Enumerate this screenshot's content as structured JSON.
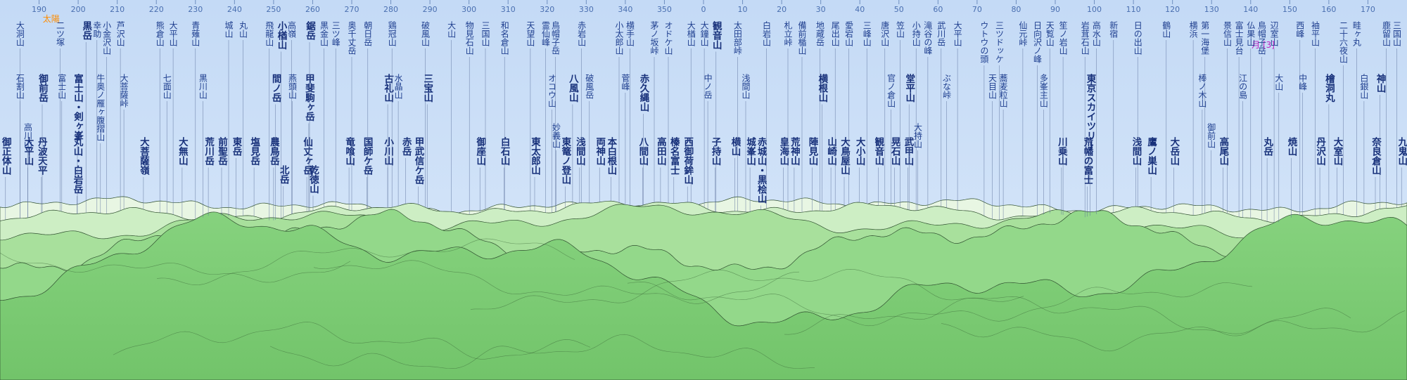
{
  "compass": {
    "xlim": [
      180,
      540
    ],
    "ticks": [
      190,
      200,
      210,
      220,
      230,
      240,
      250,
      260,
      270,
      280,
      290,
      300,
      310,
      320,
      330,
      340,
      350,
      {
        "value": 360,
        "label": "0"
      },
      {
        "value": 370,
        "label": "10"
      },
      {
        "value": 380,
        "label": "20"
      },
      {
        "value": 390,
        "label": "30"
      },
      {
        "value": 400,
        "label": "40"
      },
      {
        "value": 410,
        "label": "50"
      },
      {
        "value": 420,
        "label": "60"
      },
      {
        "value": 430,
        "label": "70"
      },
      {
        "value": 440,
        "label": "80"
      },
      {
        "value": 450,
        "label": "90"
      },
      {
        "value": 460,
        "label": "100"
      },
      {
        "value": 470,
        "label": "110"
      },
      {
        "value": 480,
        "label": "120"
      },
      {
        "value": 490,
        "label": "130"
      },
      {
        "value": 500,
        "label": "140"
      },
      {
        "value": 510,
        "label": "150"
      },
      {
        "value": 520,
        "label": "160"
      },
      {
        "value": 530,
        "label": "170"
      }
    ]
  },
  "annotations": [
    {
      "text": "太陽",
      "azimuth": 193.1,
      "color": "#ff8c00"
    },
    {
      "text": "月 [3]",
      "azimuth": 503.2,
      "color": "#c020c0"
    }
  ],
  "peaks": [
    {
      "name": "御正体山",
      "azimuth": 181.4,
      "major": true
    },
    {
      "name": "大洞山",
      "azimuth": 185.1
    },
    {
      "name": "石割山",
      "azimuth": 185.1
    },
    {
      "name": "大平山",
      "azimuth": 187.1,
      "major": true
    },
    {
      "name": "高川山",
      "azimuth": 187.1
    },
    {
      "name": "丹波天平",
      "azimuth": 190.6,
      "major": true
    },
    {
      "name": "御前岳",
      "azimuth": 190.8,
      "major": true
    },
    {
      "name": "二ツ塚",
      "azimuth": 195.4
    },
    {
      "name": "富士山",
      "azimuth": 195.8
    },
    {
      "name": "丸山・白岩岳",
      "azimuth": 199.7,
      "major": true
    },
    {
      "name": "富士山・剣ヶ峯",
      "azimuth": 199.8,
      "major": true
    },
    {
      "name": "黒岳",
      "azimuth": 202.0,
      "major": true
    },
    {
      "name": "幸助",
      "azimuth": 204.8
    },
    {
      "name": "牛奥ノ雁ヶ腹摺山",
      "azimuth": 205.7
    },
    {
      "name": "小金沢山",
      "azimuth": 207.3
    },
    {
      "name": "芦沢山",
      "azimuth": 210.8
    },
    {
      "name": "大菩薩峠",
      "azimuth": 211.7
    },
    {
      "name": "大菩薩嶺",
      "azimuth": 216.7,
      "major": true
    },
    {
      "name": "熊倉山",
      "azimuth": 220.9
    },
    {
      "name": "七面山",
      "azimuth": 222.7
    },
    {
      "name": "大平山",
      "azimuth": 224.3
    },
    {
      "name": "大無山",
      "azimuth": 226.6,
      "major": true
    },
    {
      "name": "青薙山",
      "azimuth": 230.0
    },
    {
      "name": "黒川山",
      "azimuth": 231.9
    },
    {
      "name": "荒川岳",
      "azimuth": 233.3,
      "major": true
    },
    {
      "name": "前聖岳",
      "azimuth": 236.7,
      "major": true
    },
    {
      "name": "城山",
      "azimuth": 238.5
    },
    {
      "name": "東岳",
      "azimuth": 240.4,
      "major": true
    },
    {
      "name": "丸山",
      "azimuth": 242.2
    },
    {
      "name": "塩見岳",
      "azimuth": 245.0,
      "major": true
    },
    {
      "name": "飛龍山",
      "azimuth": 248.9
    },
    {
      "name": "農鳥岳",
      "azimuth": 250.0,
      "major": true
    },
    {
      "name": "間ノ岳",
      "azimuth": 250.5,
      "major": true
    },
    {
      "name": "小楢山",
      "azimuth": 251.9,
      "major": true
    },
    {
      "name": "北岳",
      "azimuth": 252.5,
      "major": true
    },
    {
      "name": "高嶺",
      "azimuth": 254.6
    },
    {
      "name": "燕頭山",
      "azimuth": 254.8
    },
    {
      "name": "仙丈ヶ岳",
      "azimuth": 258.5,
      "major": true
    },
    {
      "name": "甲斐駒ヶ岳",
      "azimuth": 259.0,
      "major": true
    },
    {
      "name": "鋸岳",
      "azimuth": 259.2,
      "major": true
    },
    {
      "name": "乾徳山",
      "azimuth": 260.1,
      "major": true
    },
    {
      "name": "黒金山",
      "azimuth": 262.9
    },
    {
      "name": "三ツ峰",
      "azimuth": 265.9
    },
    {
      "name": "竜喰山",
      "azimuth": 269.3,
      "major": true
    },
    {
      "name": "奥千丈岳",
      "azimuth": 270.0
    },
    {
      "name": "国師ケ岳",
      "azimuth": 273.9,
      "major": true
    },
    {
      "name": "朝日岳",
      "azimuth": 274.1
    },
    {
      "name": "小川山",
      "azimuth": 279.2,
      "major": true
    },
    {
      "name": "古礼山",
      "azimuth": 279.2,
      "major": true
    },
    {
      "name": "鶏冠山",
      "azimuth": 280.3
    },
    {
      "name": "水晶山",
      "azimuth": 281.9
    },
    {
      "name": "赤岳",
      "azimuth": 283.8,
      "major": true
    },
    {
      "name": "甲武信ケ岳",
      "azimuth": 287.0,
      "major": true
    },
    {
      "name": "破風山",
      "azimuth": 288.8
    },
    {
      "name": "三宝山",
      "azimuth": 289.3,
      "major": true
    },
    {
      "name": "大山",
      "azimuth": 295.5
    },
    {
      "name": "物見石山",
      "azimuth": 300.1
    },
    {
      "name": "御座山",
      "azimuth": 302.8,
      "major": true
    },
    {
      "name": "三国山",
      "azimuth": 304.2
    },
    {
      "name": "白石山",
      "azimuth": 309.0,
      "major": true
    },
    {
      "name": "和名倉山",
      "azimuth": 309.1
    },
    {
      "name": "天望山",
      "azimuth": 315.7
    },
    {
      "name": "東太郎山",
      "azimuth": 316.8,
      "major": true
    },
    {
      "name": "霊仙峰",
      "azimuth": 319.6
    },
    {
      "name": "オコウ山",
      "azimuth": 321.2
    },
    {
      "name": "鳥帽子岳",
      "azimuth": 322.1
    },
    {
      "name": "妙義山",
      "azimuth": 322.3
    },
    {
      "name": "東篭ノ登山",
      "azimuth": 324.6,
      "major": true
    },
    {
      "name": "八風山",
      "azimuth": 326.5,
      "major": true
    },
    {
      "name": "浅間山",
      "azimuth": 328.3,
      "major": true
    },
    {
      "name": "赤岩山",
      "azimuth": 328.8
    },
    {
      "name": "破風岳",
      "azimuth": 330.8
    },
    {
      "name": "両神山",
      "azimuth": 333.4,
      "major": true
    },
    {
      "name": "本白根山",
      "azimuth": 336.3,
      "major": true
    },
    {
      "name": "小太郎山",
      "azimuth": 338.4
    },
    {
      "name": "菅峰",
      "azimuth": 340.0
    },
    {
      "name": "横手山",
      "azimuth": 341.2
    },
    {
      "name": "八間山",
      "azimuth": 344.4,
      "major": true
    },
    {
      "name": "赤久縄山",
      "azimuth": 344.6,
      "major": true
    },
    {
      "name": "茅ノ坂峠",
      "azimuth": 347.4
    },
    {
      "name": "高田山",
      "azimuth": 349.0,
      "major": true
    },
    {
      "name": "オドケ山",
      "azimuth": 351.0
    },
    {
      "name": "榛名富士",
      "azimuth": 352.4,
      "major": true
    },
    {
      "name": "西御荷鉾山",
      "azimuth": 355.9,
      "major": true
    },
    {
      "name": "大楢山",
      "azimuth": 356.8
    },
    {
      "name": "大鐘山",
      "azimuth": 360.2
    },
    {
      "name": "中ノ岳",
      "azimuth": 361.1
    },
    {
      "name": "子持山",
      "azimuth": 363.0,
      "major": true
    },
    {
      "name": "観音山",
      "azimuth": 363.2,
      "major": true
    },
    {
      "name": "横山",
      "azimuth": 368.0,
      "major": true
    },
    {
      "name": "太田部峠",
      "azimuth": 368.7
    },
    {
      "name": "浅間山",
      "azimuth": 370.8
    },
    {
      "name": "城峯山",
      "azimuth": 371.9,
      "major": true
    },
    {
      "name": "赤城山・黒桧山",
      "azimuth": 374.7,
      "major": true
    },
    {
      "name": "白岩山",
      "azimuth": 376.1
    },
    {
      "name": "皇海山",
      "azimuth": 380.4,
      "major": true
    },
    {
      "name": "札立峠",
      "azimuth": 381.6
    },
    {
      "name": "荒神山",
      "azimuth": 383.2,
      "major": true
    },
    {
      "name": "備前楯山",
      "azimuth": 385.2
    },
    {
      "name": "陣見山",
      "azimuth": 387.8,
      "major": true
    },
    {
      "name": "地蔵岳",
      "azimuth": 389.8
    },
    {
      "name": "横根山",
      "azimuth": 390.3,
      "major": true
    },
    {
      "name": "山崎山",
      "azimuth": 392.6,
      "major": true
    },
    {
      "name": "尾出山",
      "azimuth": 393.7
    },
    {
      "name": "大鳥屋山",
      "azimuth": 396.0,
      "major": true
    },
    {
      "name": "愛宕山",
      "azimuth": 397.2
    },
    {
      "name": "大小山",
      "azimuth": 399.9,
      "major": true
    },
    {
      "name": "三峰山",
      "azimuth": 401.8
    },
    {
      "name": "観音山",
      "azimuth": 404.7,
      "major": true
    },
    {
      "name": "唐沢山",
      "azimuth": 406.4
    },
    {
      "name": "官ノ倉山",
      "azimuth": 408.0
    },
    {
      "name": "晃石山",
      "azimuth": 408.9,
      "major": true
    },
    {
      "name": "笠山",
      "azimuth": 410.3
    },
    {
      "name": "武甲山",
      "azimuth": 412.3,
      "major": true
    },
    {
      "name": "堂平山",
      "azimuth": 412.6,
      "major": true
    },
    {
      "name": "小持山",
      "azimuth": 414.4
    },
    {
      "name": "大持山",
      "azimuth": 414.8
    },
    {
      "name": "滝谷の峰",
      "azimuth": 417.4
    },
    {
      "name": "武川岳",
      "azimuth": 420.8
    },
    {
      "name": "ぶな峠",
      "azimuth": 422.2
    },
    {
      "name": "大平山",
      "azimuth": 425.0
    },
    {
      "name": "ウトウの頭",
      "azimuth": 431.8
    },
    {
      "name": "天目山",
      "azimuth": 433.9
    },
    {
      "name": "三ツドッケ",
      "azimuth": 435.7
    },
    {
      "name": "蕎麦粒山",
      "azimuth": 436.7
    },
    {
      "name": "仙元峠",
      "azimuth": 441.7
    },
    {
      "name": "日向沢ノ峰",
      "azimuth": 445.4
    },
    {
      "name": "多峯主山",
      "azimuth": 447.0
    },
    {
      "name": "天覧山",
      "azimuth": 448.6
    },
    {
      "name": "川乗山",
      "azimuth": 451.6,
      "major": true
    },
    {
      "name": "笙ノ岩山",
      "azimuth": 452.0
    },
    {
      "name": "岩茸石山",
      "azimuth": 457.6
    },
    {
      "name": "荒幡の富士",
      "azimuth": 458.2,
      "major": true
    },
    {
      "name": "東京スカイツリー",
      "azimuth": 458.9,
      "major": true
    },
    {
      "name": "高水山",
      "azimuth": 460.5
    },
    {
      "name": "新宿",
      "azimuth": 464.9
    },
    {
      "name": "浅間山",
      "azimuth": 470.6,
      "major": true
    },
    {
      "name": "日の出山",
      "azimuth": 471.1
    },
    {
      "name": "鷹ノ巣山",
      "azimuth": 474.5,
      "major": true
    },
    {
      "name": "鶴山",
      "azimuth": 478.4
    },
    {
      "name": "大岳山",
      "azimuth": 480.3,
      "major": true
    },
    {
      "name": "横浜",
      "azimuth": 485.3
    },
    {
      "name": "棒ノ木山",
      "azimuth": 487.6
    },
    {
      "name": "第一海堡",
      "azimuth": 488.3
    },
    {
      "name": "御前山",
      "azimuth": 489.9
    },
    {
      "name": "高尾山",
      "azimuth": 492.9,
      "major": true
    },
    {
      "name": "景信山",
      "azimuth": 494.0
    },
    {
      "name": "富士見台",
      "azimuth": 497.0
    },
    {
      "name": "江の島",
      "azimuth": 498.0
    },
    {
      "name": "仏果山",
      "azimuth": 500.0
    },
    {
      "name": "鳥帽子岳",
      "azimuth": 502.8
    },
    {
      "name": "丸岳",
      "azimuth": 504.2,
      "major": true
    },
    {
      "name": "辺室山",
      "azimuth": 506.0
    },
    {
      "name": "大山",
      "azimuth": 507.2
    },
    {
      "name": "焼山",
      "azimuth": 510.4,
      "major": true
    },
    {
      "name": "西峰",
      "azimuth": 512.6
    },
    {
      "name": "中峰",
      "azimuth": 513.3
    },
    {
      "name": "袖平山",
      "azimuth": 516.5
    },
    {
      "name": "丹沢山",
      "azimuth": 517.7,
      "major": true
    },
    {
      "name": "檜洞丸",
      "azimuth": 520.0,
      "major": true
    },
    {
      "name": "大室山",
      "azimuth": 522.1,
      "major": true
    },
    {
      "name": "二十六夜山",
      "azimuth": 523.7
    },
    {
      "name": "畦ヶ丸",
      "azimuth": 527.1
    },
    {
      "name": "白銀山",
      "azimuth": 529.0
    },
    {
      "name": "奈良倉山",
      "azimuth": 531.9,
      "major": true
    },
    {
      "name": "神山",
      "azimuth": 533.1,
      "major": true
    },
    {
      "name": "鹿留山",
      "azimuth": 534.7
    },
    {
      "name": "三国山",
      "azimuth": 537.4
    },
    {
      "name": "九鬼山",
      "azimuth": 538.6,
      "major": true
    }
  ]
}
